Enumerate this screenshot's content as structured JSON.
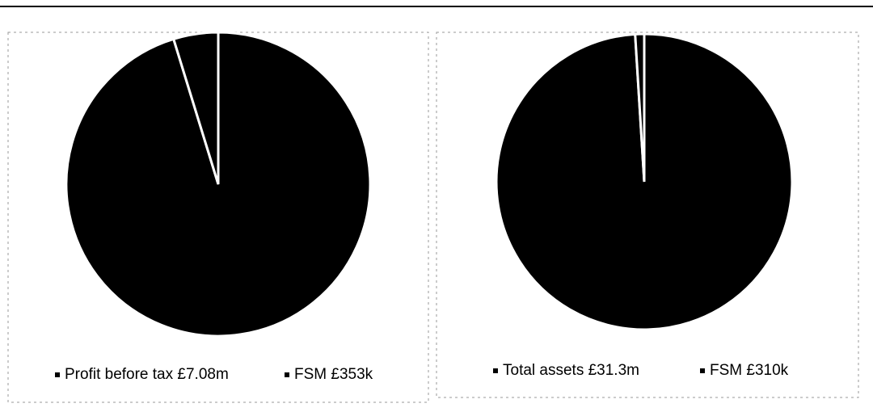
{
  "chart_data": [
    {
      "type": "pie",
      "categories": [
        "Profit before tax £7.08m",
        "FSM £353k"
      ],
      "values": [
        7080000,
        353000
      ],
      "colors": [
        "#000000",
        "#000000"
      ]
    },
    {
      "type": "pie",
      "categories": [
        "Total assets £31.3m",
        "FSM £310k"
      ],
      "values": [
        31300000,
        310000
      ],
      "colors": [
        "#000000",
        "#000000"
      ]
    }
  ]
}
